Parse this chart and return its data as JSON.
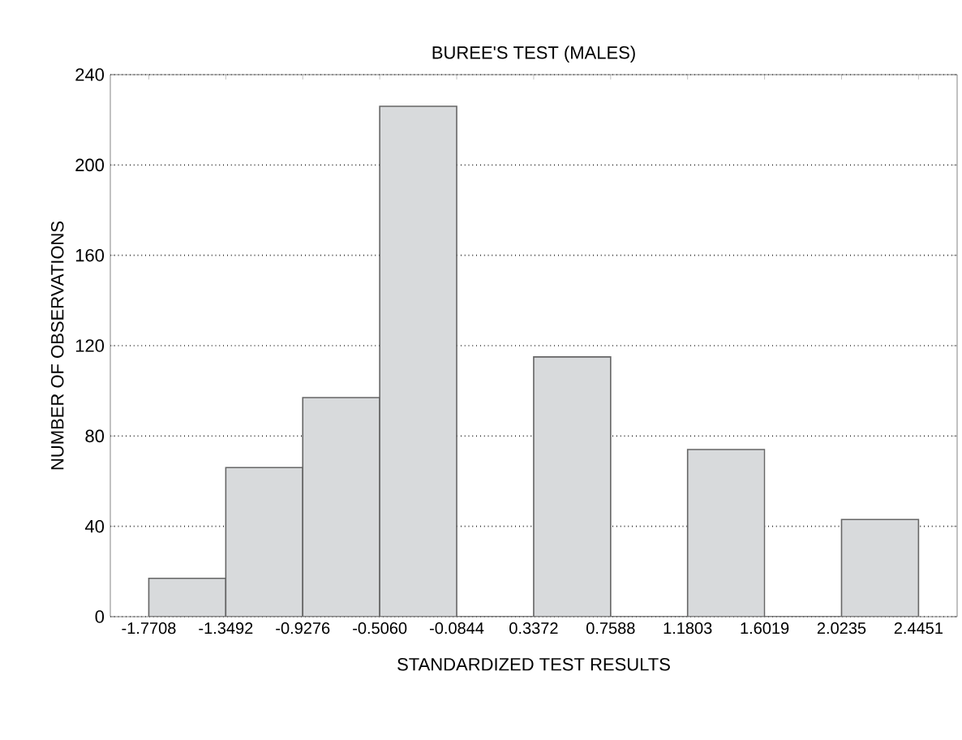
{
  "chart_data": {
    "type": "histogram",
    "title": "BUREE'S TEST (MALES)",
    "xlabel": "STANDARDIZED TEST RESULTS",
    "ylabel": "NUMBER OF OBSERVATIONS",
    "bins": [
      -1.7708,
      -1.3492,
      -0.9276,
      -0.506,
      -0.0844,
      0.3372,
      0.7588,
      1.1803,
      1.6019,
      2.0235,
      2.4451
    ],
    "values": [
      17,
      66,
      97,
      226,
      0,
      115,
      0,
      74,
      0,
      43
    ],
    "color": "#d8dadc",
    "xlim": [
      -1.9816,
      2.6567
    ],
    "xticks": [
      {
        "value": -1.7708,
        "label": "-1.7708"
      },
      {
        "value": -1.3492,
        "label": "-1.3492"
      },
      {
        "value": -0.9276,
        "label": "-0.9276"
      },
      {
        "value": -0.506,
        "label": "-0.5060"
      },
      {
        "value": -0.0844,
        "label": "-0.0844"
      },
      {
        "value": 0.3372,
        "label": "0.3372"
      },
      {
        "value": 0.7588,
        "label": "0.7588"
      },
      {
        "value": 1.1803,
        "label": "1.1803"
      },
      {
        "value": 1.6019,
        "label": "1.6019"
      },
      {
        "value": 2.0235,
        "label": "2.0235"
      },
      {
        "value": 2.4451,
        "label": "2.4451"
      }
    ],
    "ylim": [
      0,
      240
    ],
    "yticks": [
      0,
      40,
      80,
      120,
      160,
      200,
      240
    ],
    "grid": "y"
  }
}
